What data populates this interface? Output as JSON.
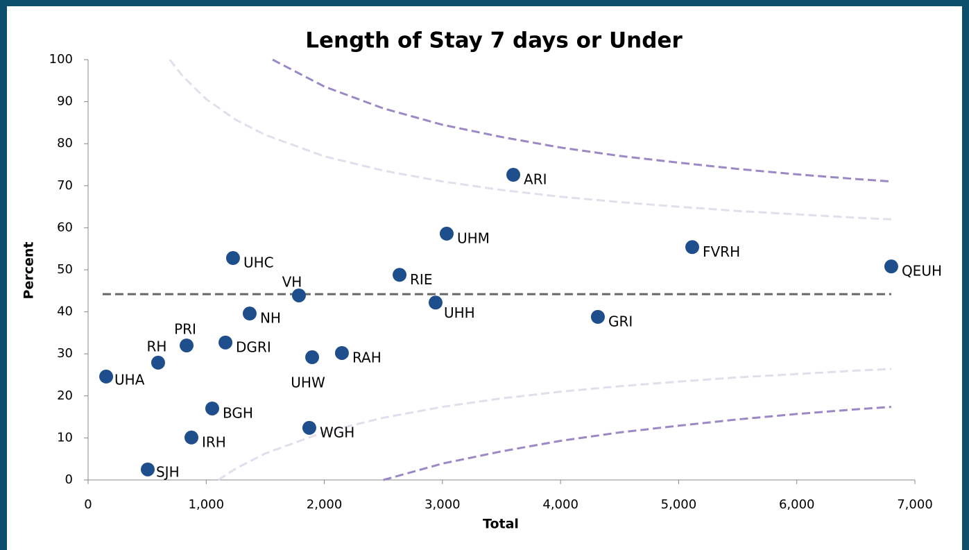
{
  "chart_data": {
    "type": "scatter",
    "title": "Length of Stay 7 days or Under",
    "x_label": "Total",
    "y_label": "Percent",
    "xlim": [
      0,
      7000
    ],
    "xticks": [
      0,
      {
        "value": 1000,
        "label": "1,000"
      },
      {
        "value": 2000,
        "label": "2,000"
      },
      {
        "value": 3000,
        "label": "3,000"
      },
      {
        "value": 4000,
        "label": "4,000"
      },
      {
        "value": 5000,
        "label": "5,000"
      },
      {
        "value": 6000,
        "label": "6,000"
      },
      {
        "value": 7000,
        "label": "7,000"
      }
    ],
    "ylim": [
      0,
      100
    ],
    "yticks": [
      0,
      10,
      20,
      30,
      40,
      50,
      60,
      70,
      80,
      90,
      100
    ],
    "grid": false,
    "series": [
      {
        "style": "dots",
        "color": "#1f4e8c",
        "labels": [
          "ARI",
          "UHM",
          "FVRH",
          "QEUH",
          "UHC",
          "RIE",
          "VH",
          "UHH",
          "NH",
          "GRI",
          "PRI",
          "DGRI",
          "RH",
          "RAH",
          "UHW",
          "UHA",
          "BGH",
          "WGH",
          "IRH",
          "SJH"
        ],
        "x": [
          3600,
          3036,
          5115,
          6800,
          1227,
          2637,
          1785,
          2942,
          1368,
          4316,
          834,
          1163,
          593,
          2149,
          1897,
          153,
          1051,
          1873,
          875,
          505
        ],
        "values": [
          72.6,
          58.6,
          55.4,
          50.8,
          52.8,
          48.8,
          43.9,
          42.2,
          39.6,
          38.8,
          32.0,
          32.7,
          27.9,
          30.2,
          29.2,
          24.6,
          17.0,
          12.4,
          10.1,
          2.5
        ]
      },
      {
        "style": "dash",
        "color": "#666666",
        "x": [
          123,
          6800
        ],
        "values": [
          44.2,
          44.2
        ]
      },
      {
        "style": "dash",
        "color": "#9b88c4",
        "x": [
          1562,
          2000,
          2500,
          3000,
          3500,
          4000,
          4500,
          5000,
          5500,
          6000,
          6500,
          6800
        ],
        "values": [
          100,
          93.6,
          88.4,
          84.5,
          81.6,
          79.1,
          77.1,
          75.5,
          74.0,
          72.7,
          71.6,
          71.0
        ]
      },
      {
        "style": "dash",
        "color": "#9b88c4",
        "x": [
          2500,
          3000,
          3500,
          4000,
          4500,
          5000,
          5500,
          6000,
          6500,
          6800
        ],
        "values": [
          0,
          3.9,
          6.8,
          9.3,
          11.3,
          12.9,
          14.4,
          15.7,
          16.8,
          17.4
        ]
      },
      {
        "style": "dash",
        "color": "#e2dfec",
        "x": [
          692,
          800,
          1000,
          1250,
          1500,
          2000,
          2500,
          3000,
          3500,
          4000,
          4500,
          5000,
          5500,
          6000,
          6500,
          6800
        ],
        "values": [
          100,
          96.1,
          90.6,
          85.7,
          82.1,
          77.0,
          73.6,
          71.0,
          69.0,
          67.4,
          66.1,
          65.0,
          64.0,
          63.2,
          62.4,
          62.0
        ]
      },
      {
        "style": "dash",
        "color": "#e2dfec",
        "x": [
          1103,
          1250,
          1500,
          2000,
          2500,
          3000,
          3500,
          4000,
          4500,
          5000,
          5500,
          6000,
          6500,
          6800
        ],
        "values": [
          0,
          2.7,
          6.3,
          11.4,
          14.8,
          17.4,
          19.4,
          21.0,
          22.3,
          23.4,
          24.4,
          25.2,
          26.0,
          26.4
        ]
      }
    ]
  }
}
